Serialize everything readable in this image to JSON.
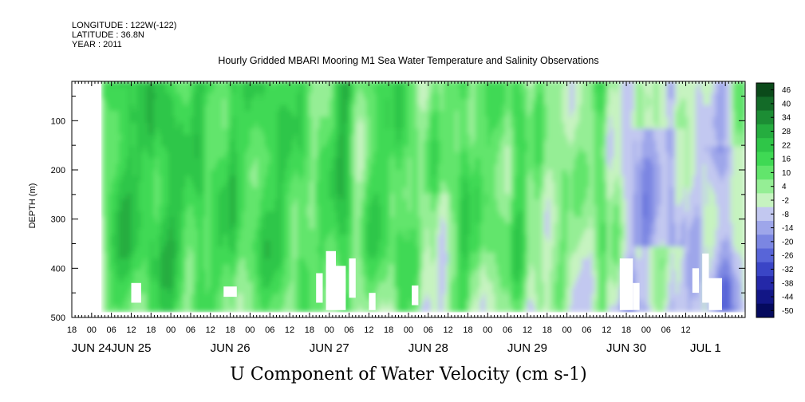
{
  "header": {
    "longitude": "LONGITUDE : 122W(-122)",
    "latitude": "LATITUDE : 36.8N",
    "year": "YEAR : 2011",
    "title": "Hourly Gridded MBARI Mooring M1 Sea Water Temperature and Salinity Observations"
  },
  "chart_data": {
    "type": "heatmap",
    "title": "Hourly Gridded MBARI Mooring M1 Sea Water Temperature and Salinity Observations",
    "xlabel": "U Component of Water Velocity (cm s-1)",
    "ylabel": "DEPTH (m)",
    "x_axis": {
      "range_hours_from_jun24_00": [
        -6,
        198
      ],
      "hour_tick_labels": [
        "18",
        "00",
        "06",
        "12",
        "18",
        "00",
        "06",
        "12",
        "18",
        "00",
        "06",
        "12",
        "18",
        "00",
        "06",
        "12",
        "18",
        "00",
        "06",
        "12",
        "18",
        "00",
        "06",
        "12",
        "18",
        "00",
        "06",
        "12",
        "18",
        "00",
        "06",
        "12"
      ],
      "hour_tick_values": [
        -6,
        0,
        6,
        12,
        18,
        24,
        30,
        36,
        42,
        48,
        54,
        60,
        66,
        72,
        78,
        84,
        90,
        96,
        102,
        108,
        114,
        120,
        126,
        132,
        138,
        144,
        150,
        156,
        162,
        168,
        174,
        180
      ],
      "day_labels": [
        {
          "text": "JUN 24",
          "hour": 0
        },
        {
          "text": "JUN 25",
          "hour": 12
        },
        {
          "text": "JUN 26",
          "hour": 42
        },
        {
          "text": "JUN 27",
          "hour": 72
        },
        {
          "text": "JUN 28",
          "hour": 102
        },
        {
          "text": "JUN 29",
          "hour": 132
        },
        {
          "text": "JUN 30",
          "hour": 162
        },
        {
          "text": "JUL  1",
          "hour": 186
        }
      ]
    },
    "y_axis": {
      "range": [
        20,
        500
      ],
      "reversed": true,
      "tick_labels": [
        "100",
        "200",
        "300",
        "400",
        "500"
      ],
      "tick_values": [
        100,
        200,
        300,
        400,
        500
      ],
      "minor_step": 50
    },
    "data_extent": {
      "hour_start": 3,
      "hour_end": 198,
      "depth_top": 20,
      "depth_bottom": 485
    },
    "colorbar": {
      "levels": [
        "46",
        "40",
        "34",
        "28",
        "22",
        "16",
        "10",
        "4",
        "-2",
        "-8",
        "-14",
        "-20",
        "-26",
        "-32",
        "-38",
        "-44",
        "-50"
      ],
      "colors": [
        "#0b4a1a",
        "#136b28",
        "#1c8d34",
        "#25ad3f",
        "#2fc648",
        "#3fd954",
        "#62e56c",
        "#95ee95",
        "#c6f3c0",
        "#c2c8f0",
        "#9ea6ea",
        "#7b86e2",
        "#5865d8",
        "#3a45c6",
        "#2428a8",
        "#121686",
        "#050a5e"
      ]
    },
    "field_summary": "Predominantly positive U (+4 to +22 cm/s, green) from JUN 25 to JUN 29; patches of negative U (-2 to -14 cm/s, blue) increasing after JUN 29, strongest near JUN 30 18h to JUL 1 06h at 150-350 m; white gaps (missing data) near the bottom around 400-485 m."
  }
}
